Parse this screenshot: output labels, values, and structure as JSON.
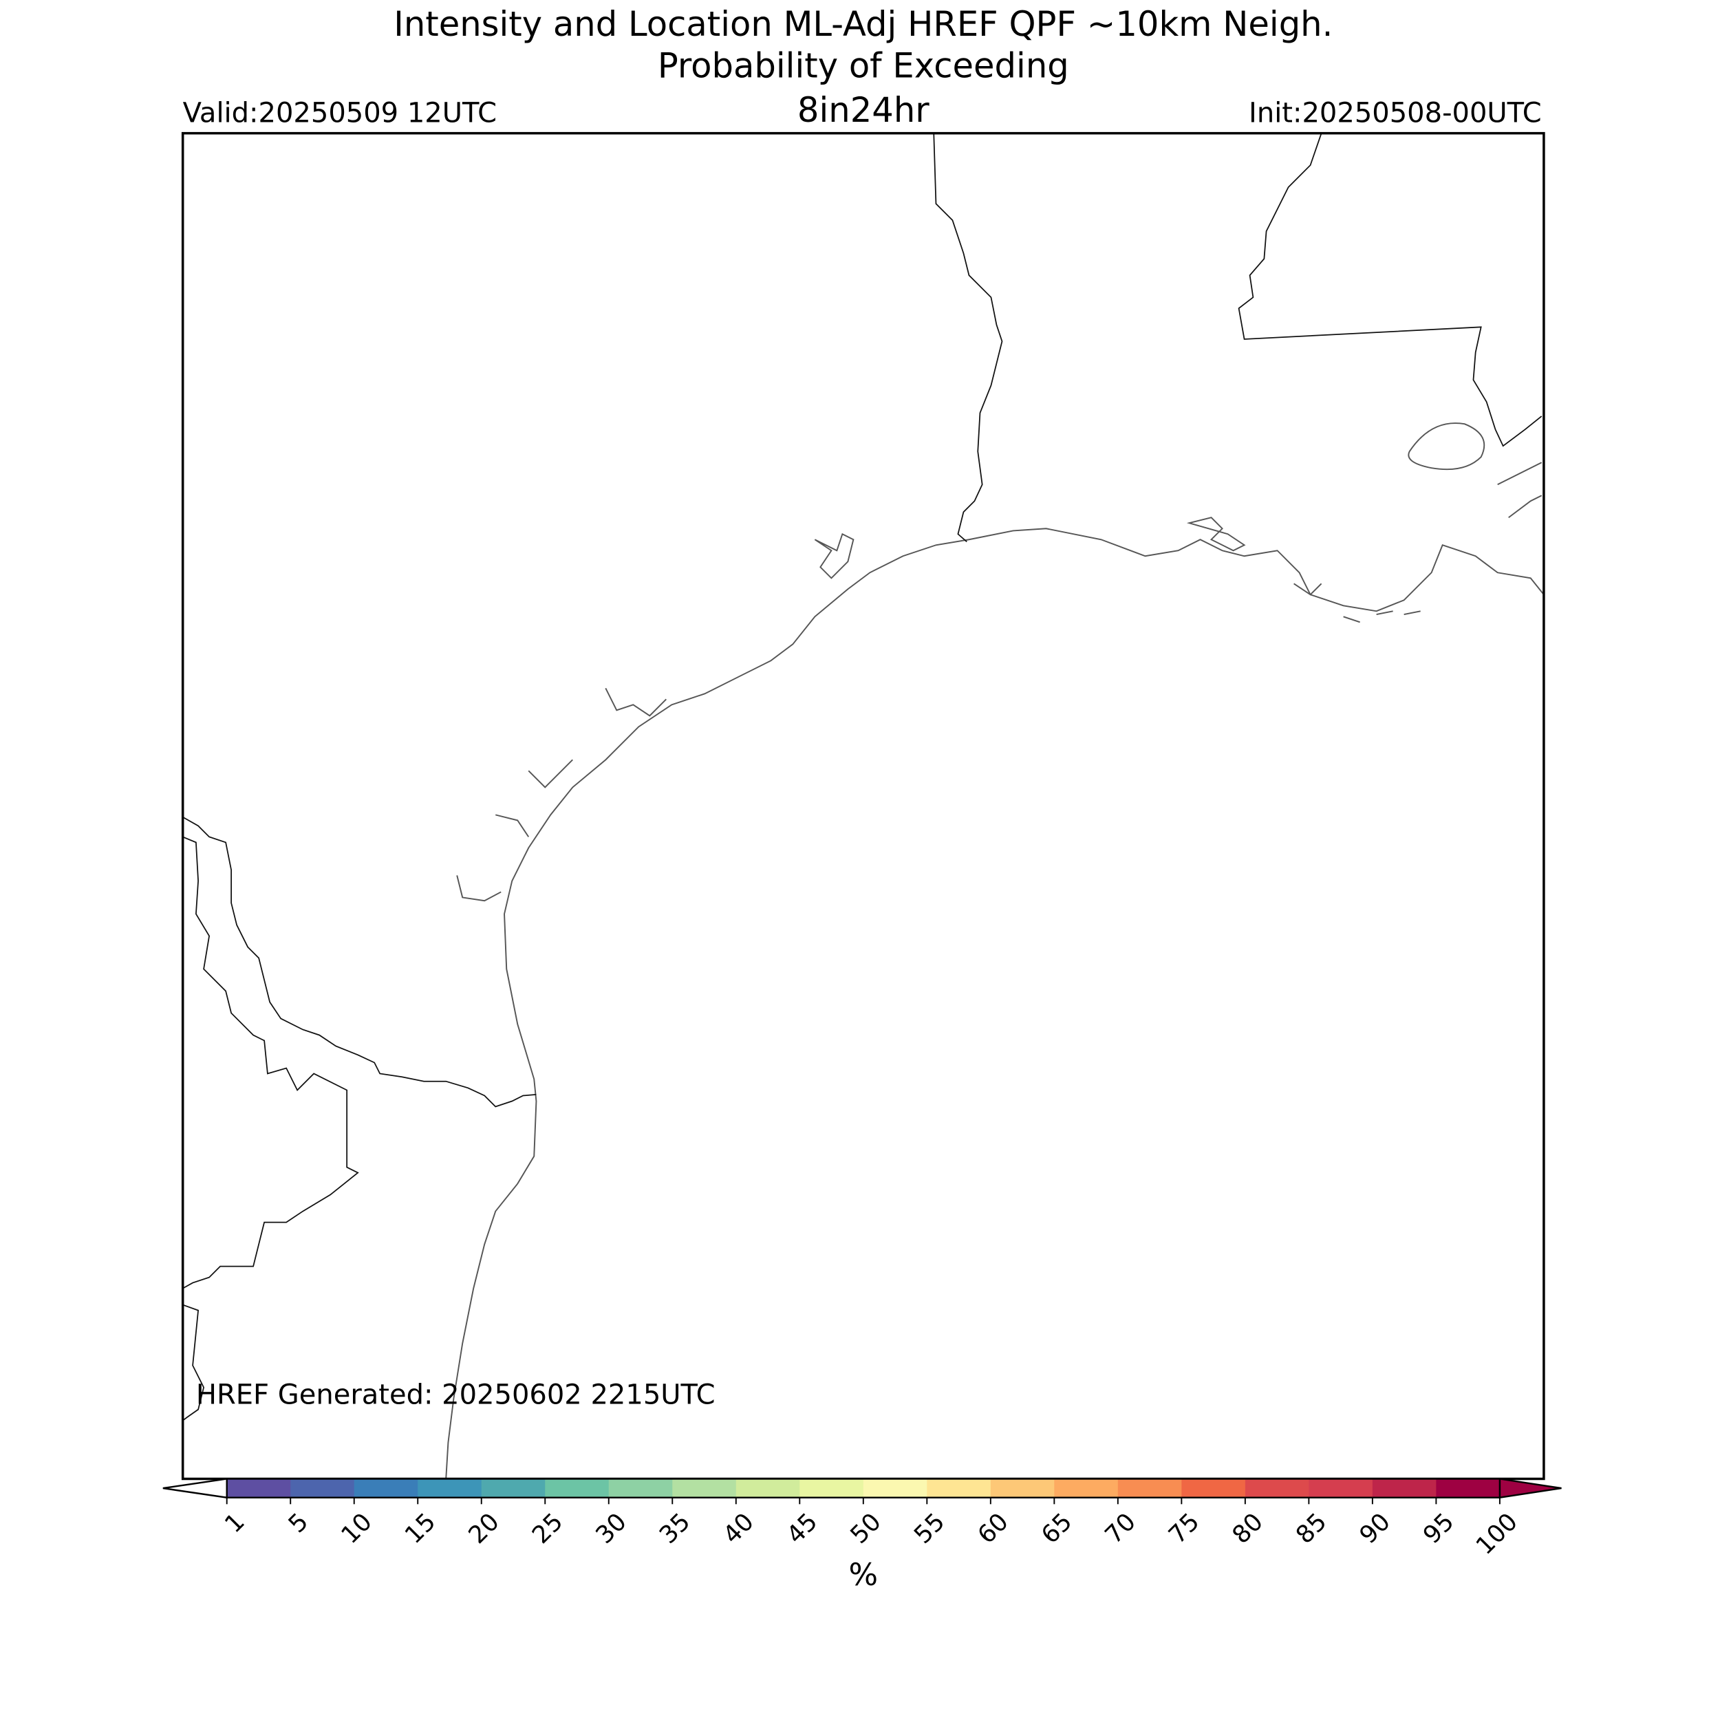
{
  "header": {
    "title_lines": [
      "Intensity and Location ML-Adj HREF QPF ~10km Neigh.",
      "Probability of Exceeding"
    ],
    "valid": "Valid:20250509 12UTC",
    "threshold": "8in24hr",
    "init": "Init:20250508-00UTC"
  },
  "map": {
    "generated": "HREF Generated: 20250602 2215UTC"
  },
  "colorbar": {
    "levels": [
      1,
      5,
      10,
      15,
      20,
      25,
      30,
      35,
      40,
      45,
      50,
      55,
      60,
      65,
      70,
      75,
      80,
      85,
      90,
      95,
      100
    ],
    "colors": [
      "#5e4fa2",
      "#4d65ad",
      "#3a7eb8",
      "#3d95b8",
      "#4fa9ae",
      "#6cc4a5",
      "#8ed1a4",
      "#b3e0a2",
      "#d1ec9c",
      "#e9f6a2",
      "#fbf8b0",
      "#fee593",
      "#fdc877",
      "#fdab61",
      "#f88d52",
      "#f06744",
      "#dd4a4c",
      "#d53e4f",
      "#be254a",
      "#9e0142"
    ],
    "under_color": "#ffffff",
    "over_color": "#9e0142",
    "label": "%"
  }
}
